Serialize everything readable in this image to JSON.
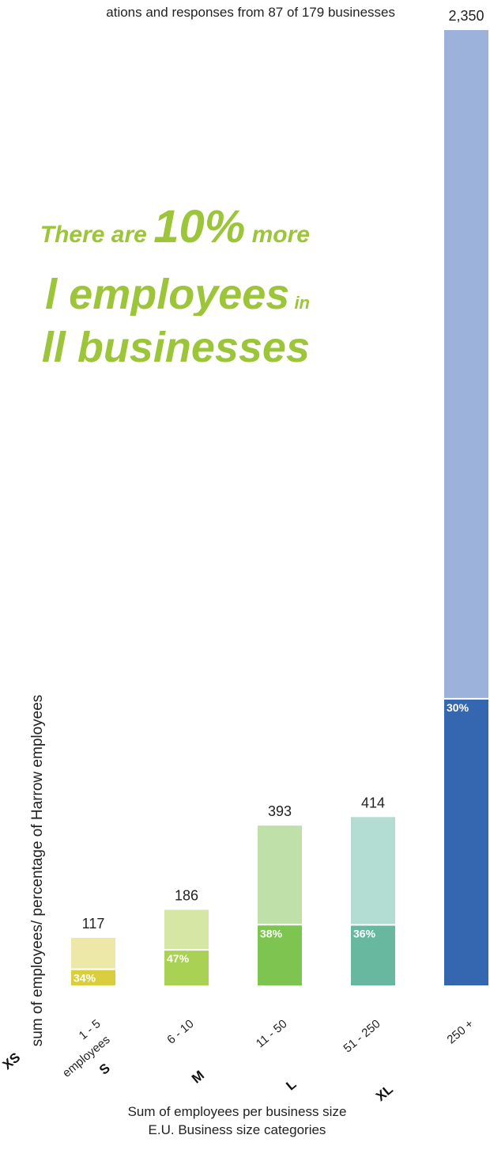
{
  "subtitle": "ations and responses from 87 of 179 businesses",
  "headline": {
    "line1_pre": "There are ",
    "line1_big": "10%",
    "line1_post": " more",
    "line2": "l employees",
    "line2_small": " in",
    "line3": "ll businesses"
  },
  "chart_data": {
    "type": "bar",
    "categories": [
      "1 - 5\nemployees",
      "6 - 10",
      "11 - 50",
      "51 - 250",
      "250 +"
    ],
    "size_labels": [
      "XS",
      "S",
      "M",
      "L",
      "XL"
    ],
    "values": [
      117,
      186,
      393,
      414,
      2350
    ],
    "value_labels": [
      "117",
      "186",
      "393",
      "414",
      "2,350"
    ],
    "percentages": [
      34,
      47,
      38,
      36,
      30
    ],
    "percentage_labels": [
      "34%",
      "47%",
      "38%",
      "36%",
      "30%"
    ],
    "ylabel": "sum of employees/ percentage of Harrow employees",
    "xlabel": "Sum of employees per business size",
    "xlabel2": "E.U. Business size categories",
    "ylim": [
      0,
      2350
    ],
    "colors": {
      "total": [
        "#ede8a8",
        "#d6e6a4",
        "#bfe0a8",
        "#b3dcd2",
        "#9db2da"
      ],
      "share": [
        "#d9cf3e",
        "#a9d153",
        "#7dc450",
        "#68b8a0",
        "#3567b0"
      ]
    }
  }
}
